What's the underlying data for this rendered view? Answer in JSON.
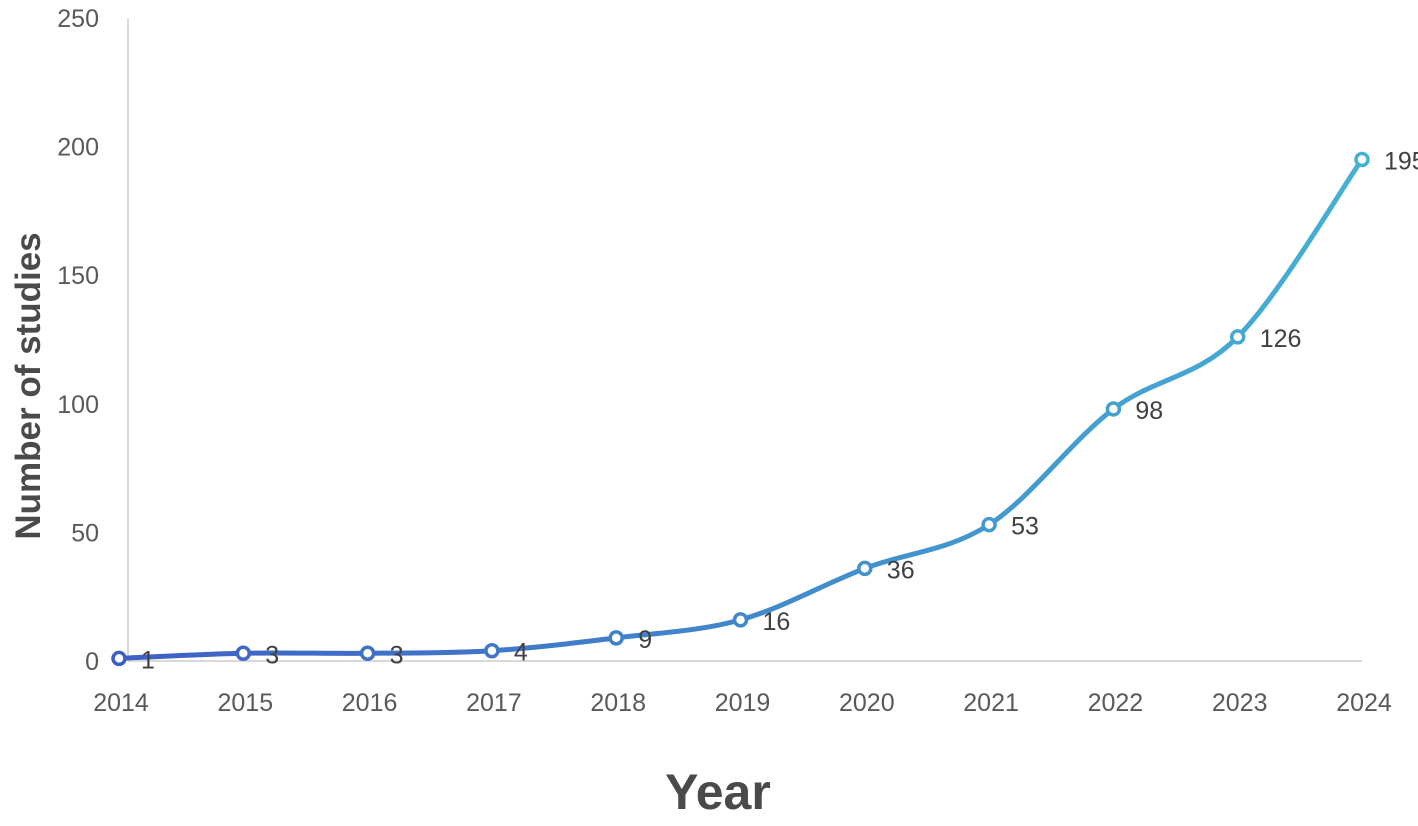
{
  "chart_data": {
    "type": "line",
    "title": "",
    "xlabel": "Year",
    "ylabel": "Number of studies",
    "x": [
      "2014",
      "2015",
      "2016",
      "2017",
      "2018",
      "2019",
      "2020",
      "2021",
      "2022",
      "2023",
      "2024"
    ],
    "series": [
      {
        "values": [
          1,
          3,
          3,
          4,
          9,
          16,
          36,
          53,
          98,
          126,
          195
        ],
        "data_labels": [
          "1",
          "3",
          "3",
          "4",
          "9",
          "16",
          "36",
          "53",
          "98",
          "126",
          "195"
        ]
      }
    ],
    "ylim": [
      0,
      250
    ],
    "yticks": [
      "0",
      "50",
      "100",
      "150",
      "200",
      "250"
    ],
    "grid": false,
    "legend": "none",
    "line_style": "smoothed",
    "marker": "hollow-circle",
    "colors": {
      "line_start": "#3d5fc4",
      "line_end": "#45b1d3",
      "axis": "#d9d9d9",
      "tick_text": "#595959",
      "label_text": "#404040",
      "axis_title": "#4a4a4a"
    }
  }
}
